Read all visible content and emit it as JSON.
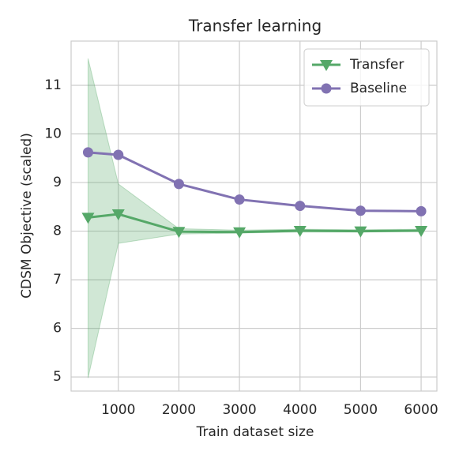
{
  "chart_data": {
    "type": "line",
    "title": "Transfer learning",
    "x_label": "Train dataset size",
    "y_label": "CDSM Objective (scaled)",
    "x": [
      500,
      1000,
      2000,
      3000,
      4000,
      5000,
      6000
    ],
    "series": [
      {
        "name": "Transfer",
        "color": "#55a868",
        "marker": "triangle-down",
        "values": [
          8.28,
          8.35,
          7.99,
          7.98,
          8.01,
          8.0,
          8.01
        ],
        "lower": [
          4.98,
          7.75,
          7.94,
          7.96,
          7.98,
          7.98,
          7.99
        ],
        "upper": [
          11.55,
          8.97,
          8.05,
          8.02,
          8.04,
          8.03,
          8.04
        ]
      },
      {
        "name": "Baseline",
        "color": "#8172b2",
        "marker": "circle",
        "values": [
          9.62,
          9.57,
          8.97,
          8.65,
          8.52,
          8.42,
          8.41
        ]
      }
    ],
    "xlim": [
      220,
      6260
    ],
    "ylim": [
      4.71,
      11.91
    ],
    "xticks": [
      1000,
      2000,
      3000,
      4000,
      5000,
      6000
    ],
    "yticks": [
      5,
      6,
      7,
      8,
      9,
      10,
      11
    ],
    "grid": true,
    "legend": "upper right"
  }
}
